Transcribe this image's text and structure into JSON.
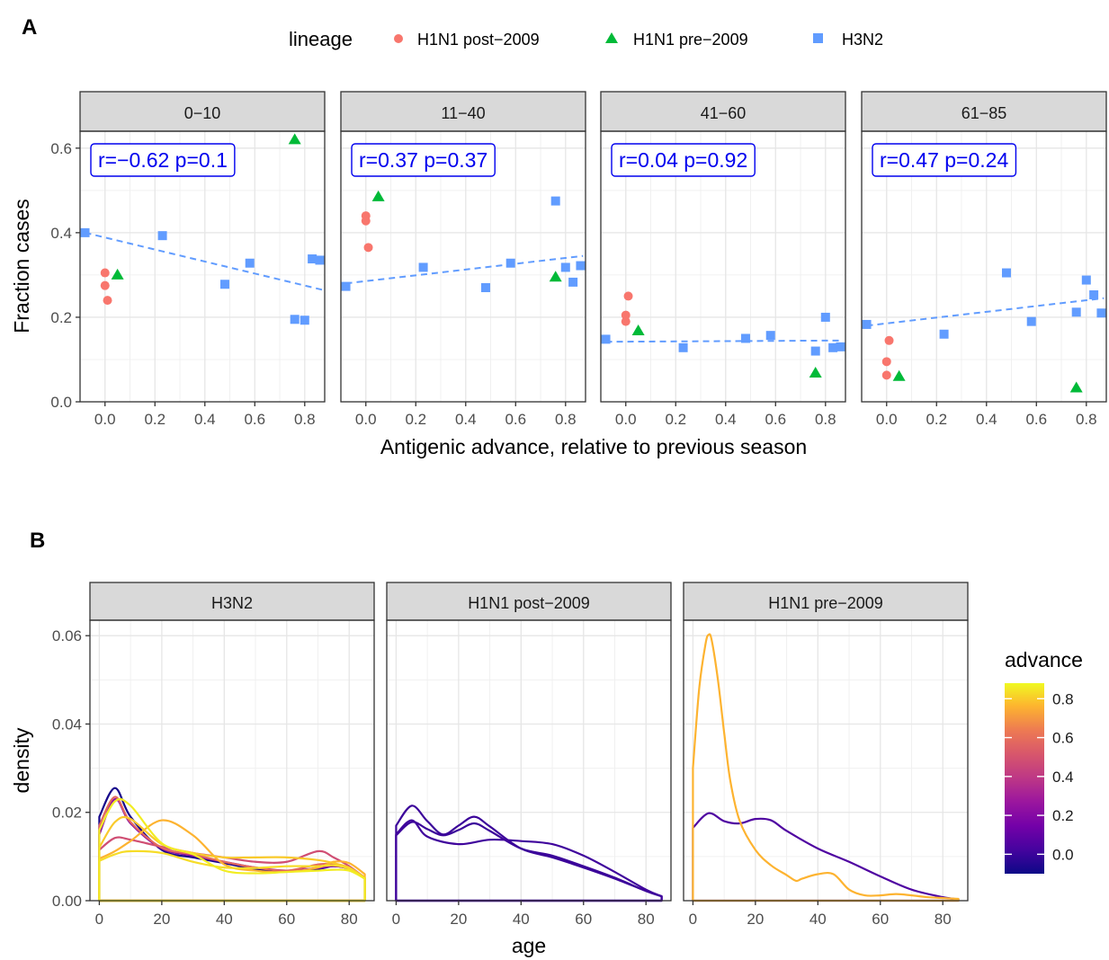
{
  "panel_a": {
    "tag": "A",
    "legend": {
      "title": "lineage",
      "entries": [
        {
          "name": "H1N1 post−2009",
          "color": "#F8766D",
          "shape": "circle"
        },
        {
          "name": "H1N1 pre−2009",
          "color": "#00BA38",
          "shape": "triangle"
        },
        {
          "name": "H3N2",
          "color": "#619CFF",
          "shape": "square"
        }
      ]
    },
    "xlabel": "Antigenic advance, relative to previous season",
    "ylabel": "Fraction cases",
    "xticks": [
      "0.0",
      "0.2",
      "0.4",
      "0.6",
      "0.8"
    ],
    "yticks": [
      "0.0",
      "0.2",
      "0.4",
      "0.6"
    ]
  },
  "panel_b": {
    "tag": "B",
    "xlabel": "age",
    "ylabel": "density",
    "xticks": [
      "0",
      "20",
      "40",
      "60",
      "80"
    ],
    "yticks": [
      "0.00",
      "0.02",
      "0.04",
      "0.06"
    ],
    "colorbar": {
      "title": "advance",
      "ticks": [
        "0.0",
        "0.2",
        "0.4",
        "0.6",
        "0.8"
      ]
    }
  },
  "chart_data": [
    {
      "type": "scatter",
      "xlabel": "Antigenic advance, relative to previous season",
      "ylabel": "Fraction cases",
      "xlim": [
        -0.1,
        0.88
      ],
      "ylim": [
        0,
        0.64
      ],
      "facets": [
        {
          "label": "0−10",
          "annotation": "r=−0.62  p=0.1",
          "fit": {
            "x": [
              -0.08,
              0.87
            ],
            "y": [
              0.4,
              0.265
            ]
          },
          "series": [
            {
              "name": "H1N1 post−2009",
              "points": [
                [
                  0.0,
                  0.305
                ],
                [
                  0.0,
                  0.275
                ],
                [
                  0.01,
                  0.24
                ]
              ]
            },
            {
              "name": "H1N1 pre−2009",
              "points": [
                [
                  0.05,
                  0.3
                ],
                [
                  0.76,
                  0.62
                ]
              ]
            },
            {
              "name": "H3N2",
              "points": [
                [
                  -0.08,
                  0.4
                ],
                [
                  0.23,
                  0.393
                ],
                [
                  0.48,
                  0.278
                ],
                [
                  0.58,
                  0.328
                ],
                [
                  0.76,
                  0.195
                ],
                [
                  0.8,
                  0.193
                ],
                [
                  0.83,
                  0.338
                ],
                [
                  0.86,
                  0.335
                ]
              ]
            }
          ]
        },
        {
          "label": "11−40",
          "annotation": "r=0.37  p=0.37",
          "fit": {
            "x": [
              -0.08,
              0.87
            ],
            "y": [
              0.28,
              0.345
            ]
          },
          "series": [
            {
              "name": "H1N1 post−2009",
              "points": [
                [
                  0.0,
                  0.44
                ],
                [
                  0.0,
                  0.428
                ],
                [
                  0.01,
                  0.365
                ]
              ]
            },
            {
              "name": "H1N1 pre−2009",
              "points": [
                [
                  0.05,
                  0.485
                ],
                [
                  0.76,
                  0.295
                ]
              ]
            },
            {
              "name": "H3N2",
              "points": [
                [
                  -0.08,
                  0.273
                ],
                [
                  0.23,
                  0.318
                ],
                [
                  0.48,
                  0.27
                ],
                [
                  0.58,
                  0.328
                ],
                [
                  0.76,
                  0.475
                ],
                [
                  0.8,
                  0.318
                ],
                [
                  0.83,
                  0.283
                ],
                [
                  0.86,
                  0.322
                ]
              ]
            }
          ]
        },
        {
          "label": "41−60",
          "annotation": "r=0.04  p=0.92",
          "fit": {
            "x": [
              -0.08,
              0.87
            ],
            "y": [
              0.142,
              0.145
            ]
          },
          "series": [
            {
              "name": "H1N1 post−2009",
              "points": [
                [
                  0.01,
                  0.25
                ],
                [
                  0.0,
                  0.205
                ],
                [
                  0.0,
                  0.19
                ]
              ]
            },
            {
              "name": "H1N1 pre−2009",
              "points": [
                [
                  0.05,
                  0.168
                ],
                [
                  0.76,
                  0.068
                ]
              ]
            },
            {
              "name": "H3N2",
              "points": [
                [
                  -0.08,
                  0.148
                ],
                [
                  0.23,
                  0.128
                ],
                [
                  0.48,
                  0.15
                ],
                [
                  0.58,
                  0.157
                ],
                [
                  0.76,
                  0.12
                ],
                [
                  0.8,
                  0.2
                ],
                [
                  0.83,
                  0.128
                ],
                [
                  0.86,
                  0.13
                ]
              ]
            }
          ]
        },
        {
          "label": "61−85",
          "annotation": "r=0.47  p=0.24",
          "fit": {
            "x": [
              -0.08,
              0.87
            ],
            "y": [
              0.18,
              0.245
            ]
          },
          "series": [
            {
              "name": "H1N1 post−2009",
              "points": [
                [
                  0.01,
                  0.145
                ],
                [
                  0.0,
                  0.095
                ],
                [
                  0.0,
                  0.063
                ]
              ]
            },
            {
              "name": "H1N1 pre−2009",
              "points": [
                [
                  0.05,
                  0.06
                ],
                [
                  0.76,
                  0.033
                ]
              ]
            },
            {
              "name": "H3N2",
              "points": [
                [
                  -0.08,
                  0.183
                ],
                [
                  0.23,
                  0.16
                ],
                [
                  0.48,
                  0.305
                ],
                [
                  0.58,
                  0.19
                ],
                [
                  0.76,
                  0.212
                ],
                [
                  0.8,
                  0.288
                ],
                [
                  0.83,
                  0.253
                ],
                [
                  0.86,
                  0.21
                ]
              ]
            }
          ]
        }
      ]
    },
    {
      "type": "line",
      "xlabel": "age",
      "ylabel": "density",
      "xlim": [
        -3,
        88
      ],
      "ylim": [
        0,
        0.0635
      ],
      "color_scale": {
        "title": "advance",
        "range": [
          -0.1,
          0.88
        ],
        "colormap": "plasma"
      },
      "facets": [
        {
          "label": "H3N2",
          "curves": [
            {
              "advance": -0.08,
              "x": [
                0,
                5,
                10,
                20,
                30,
                40,
                50,
                60,
                70,
                75,
                80,
                85
              ],
              "y": [
                0.019,
                0.0255,
                0.019,
                0.0115,
                0.0098,
                0.0085,
                0.0072,
                0.0068,
                0.0072,
                0.0078,
                0.0072,
                0.005
              ]
            },
            {
              "advance": 0.23,
              "x": [
                0,
                5,
                10,
                20,
                30,
                40,
                50,
                60,
                70,
                75,
                80,
                85
              ],
              "y": [
                0.015,
                0.023,
                0.0175,
                0.0118,
                0.0102,
                0.0088,
                0.0075,
                0.0068,
                0.0074,
                0.0078,
                0.0072,
                0.005
              ]
            },
            {
              "advance": 0.48,
              "x": [
                0,
                5,
                10,
                20,
                30,
                40,
                50,
                60,
                70,
                75,
                80,
                85
              ],
              "y": [
                0.0115,
                0.0142,
                0.0138,
                0.0122,
                0.0108,
                0.0098,
                0.0088,
                0.0088,
                0.0112,
                0.0098,
                0.0078,
                0.0052
              ]
            },
            {
              "advance": 0.58,
              "x": [
                0,
                5,
                10,
                20,
                30,
                40,
                50,
                60,
                70,
                75,
                80,
                85
              ],
              "y": [
                0.017,
                0.0235,
                0.0178,
                0.012,
                0.0105,
                0.0088,
                0.0075,
                0.0068,
                0.0082,
                0.0082,
                0.0072,
                0.005
              ]
            },
            {
              "advance": 0.76,
              "x": [
                0,
                5,
                10,
                20,
                30,
                40,
                50,
                60,
                70,
                75,
                80,
                85
              ],
              "y": [
                0.0095,
                0.0112,
                0.0135,
                0.0182,
                0.0148,
                0.0082,
                0.0068,
                0.0065,
                0.0075,
                0.0088,
                0.0085,
                0.006
              ]
            },
            {
              "advance": 0.8,
              "x": [
                0,
                5,
                10,
                20,
                30,
                40,
                50,
                60,
                70,
                75,
                80,
                85
              ],
              "y": [
                0.012,
                0.0178,
                0.0185,
                0.0128,
                0.0108,
                0.0098,
                0.0098,
                0.0098,
                0.0092,
                0.0085,
                0.0075,
                0.0052
              ]
            },
            {
              "advance": 0.83,
              "x": [
                0,
                5,
                10,
                20,
                30,
                40,
                50,
                60,
                70,
                75,
                80,
                85
              ],
              "y": [
                0.009,
                0.0105,
                0.0112,
                0.0108,
                0.0088,
                0.0075,
                0.0074,
                0.0078,
                0.0078,
                0.008,
                0.0072,
                0.005
              ]
            },
            {
              "advance": 0.86,
              "x": [
                0,
                5,
                10,
                20,
                30,
                40,
                50,
                60,
                70,
                75,
                80,
                85
              ],
              "y": [
                0.016,
                0.0225,
                0.0215,
                0.013,
                0.0105,
                0.0068,
                0.0062,
                0.0065,
                0.0068,
                0.007,
                0.0068,
                0.005
              ]
            }
          ]
        },
        {
          "label": "H1N1 post−2009",
          "curves": [
            {
              "advance": 0.0,
              "x": [
                0,
                5,
                10,
                15,
                20,
                25,
                30,
                40,
                50,
                60,
                70,
                80,
                85
              ],
              "y": [
                0.017,
                0.0215,
                0.018,
                0.015,
                0.017,
                0.019,
                0.0168,
                0.0118,
                0.0098,
                0.0075,
                0.005,
                0.0022,
                0.001
              ]
            },
            {
              "advance": 0.0,
              "x": [
                0,
                5,
                10,
                15,
                20,
                25,
                30,
                40,
                50,
                60,
                70,
                80,
                85
              ],
              "y": [
                0.0148,
                0.0178,
                0.0162,
                0.0148,
                0.016,
                0.0175,
                0.0158,
                0.0118,
                0.0102,
                0.0078,
                0.0052,
                0.0022,
                0.001
              ]
            },
            {
              "advance": 0.01,
              "x": [
                0,
                5,
                10,
                20,
                30,
                40,
                50,
                60,
                70,
                80,
                85
              ],
              "y": [
                0.015,
                0.0182,
                0.0145,
                0.0128,
                0.0138,
                0.0135,
                0.0128,
                0.0102,
                0.0065,
                0.0025,
                0.001
              ]
            }
          ]
        },
        {
          "label": "H1N1 pre−2009",
          "curves": [
            {
              "advance": 0.05,
              "x": [
                0,
                5,
                10,
                15,
                20,
                25,
                30,
                40,
                50,
                60,
                70,
                80,
                85
              ],
              "y": [
                0.0165,
                0.0198,
                0.018,
                0.0175,
                0.0185,
                0.0182,
                0.0158,
                0.0118,
                0.0088,
                0.0055,
                0.0025,
                0.0008,
                0.0003
              ]
            },
            {
              "advance": 0.76,
              "x": [
                0,
                2,
                4,
                5,
                6,
                8,
                10,
                12,
                15,
                20,
                25,
                30,
                33,
                35,
                40,
                45,
                50,
                55,
                60,
                65,
                70,
                75,
                80,
                85
              ],
              "y": [
                0.03,
                0.048,
                0.058,
                0.0602,
                0.059,
                0.05,
                0.038,
                0.027,
                0.018,
                0.0115,
                0.008,
                0.0058,
                0.0045,
                0.005,
                0.006,
                0.006,
                0.0025,
                0.0012,
                0.0012,
                0.0015,
                0.0012,
                0.0008,
                0.0006,
                0.0004
              ]
            }
          ]
        }
      ]
    }
  ]
}
